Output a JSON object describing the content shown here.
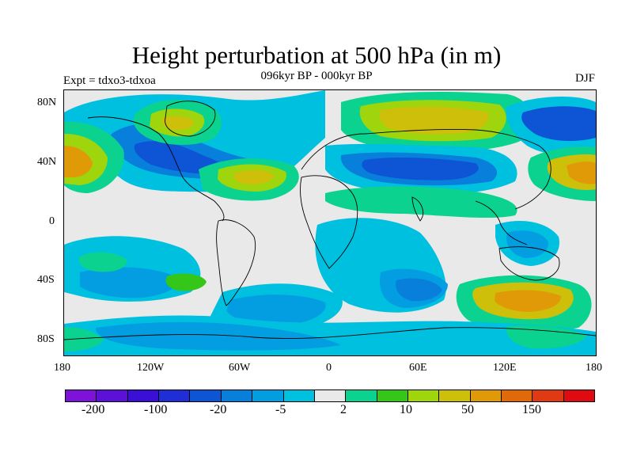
{
  "title": "Height perturbation at 500 hPa (in m)",
  "subtitle": "096kyr BP - 000kyr BP",
  "left_note": "Expt = tdxo3-tdxoa",
  "right_note": "DJF",
  "axes": {
    "y_ticks": [
      "80N",
      "40N",
      "0",
      "40S",
      "80S"
    ],
    "x_ticks": [
      "180",
      "120W",
      "60W",
      "0",
      "60E",
      "120E",
      "180"
    ]
  },
  "colorbar": {
    "colors": [
      "#7f12d8",
      "#5d10d8",
      "#3b10d6",
      "#1f2ed6",
      "#0e55d6",
      "#087fda",
      "#039de2",
      "#00c0e0",
      "#e9e9e9",
      "#0bd38f",
      "#35c61a",
      "#9fd50d",
      "#cdbf0a",
      "#e09a07",
      "#e06a0a",
      "#e03a14",
      "#e00b10"
    ],
    "labels": [
      "-200",
      "-100",
      "-20",
      "-5",
      "2",
      "10",
      "50",
      "150"
    ]
  },
  "map_colors": {
    "background": "#e9e9e9",
    "neg_light": "#00c0e0",
    "neg_mid": "#039de2",
    "neg_dark": "#087fda",
    "neg_deep": "#0e55d6",
    "pos_light": "#0bd38f",
    "pos_mid": "#35c61a",
    "pos_yellow": "#9fd50d",
    "pos_gold": "#cdbf0a",
    "pos_orange": "#e09a07"
  }
}
